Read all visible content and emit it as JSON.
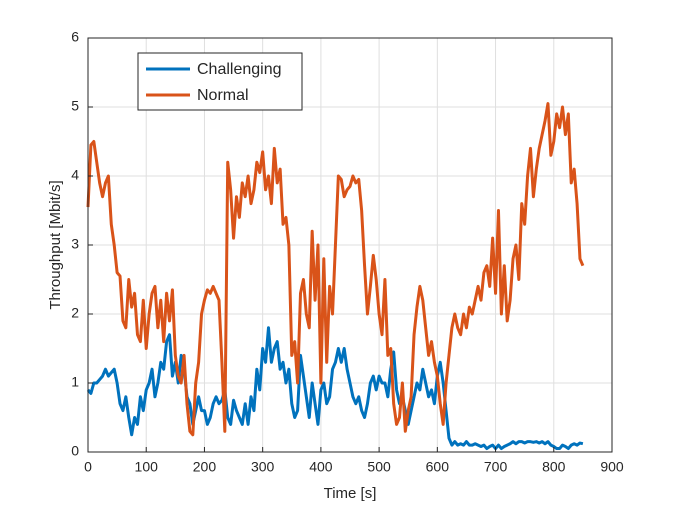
{
  "chart_data": {
    "type": "line",
    "xlabel": "Time [s]",
    "ylabel": "Throughput [Mbit/s]",
    "xlim": [
      0,
      900
    ],
    "ylim": [
      0,
      6
    ],
    "xticks": [
      0,
      100,
      200,
      300,
      400,
      500,
      600,
      700,
      800,
      900
    ],
    "yticks": [
      0,
      1,
      2,
      3,
      4,
      5,
      6
    ],
    "grid": true,
    "legend": "upper left",
    "x": [
      0,
      5,
      10,
      15,
      20,
      25,
      30,
      35,
      40,
      45,
      50,
      55,
      60,
      65,
      70,
      75,
      80,
      85,
      90,
      95,
      100,
      105,
      110,
      115,
      120,
      125,
      130,
      135,
      140,
      145,
      150,
      155,
      160,
      165,
      170,
      175,
      180,
      185,
      190,
      195,
      200,
      205,
      210,
      215,
      220,
      225,
      230,
      235,
      240,
      245,
      250,
      255,
      260,
      265,
      270,
      275,
      280,
      285,
      290,
      295,
      300,
      305,
      310,
      315,
      320,
      325,
      330,
      335,
      340,
      345,
      350,
      355,
      360,
      365,
      370,
      375,
      380,
      385,
      390,
      395,
      400,
      405,
      410,
      415,
      420,
      425,
      430,
      435,
      440,
      445,
      450,
      455,
      460,
      465,
      470,
      475,
      480,
      485,
      490,
      495,
      500,
      505,
      510,
      515,
      520,
      525,
      530,
      535,
      540,
      545,
      550,
      555,
      560,
      565,
      570,
      575,
      580,
      585,
      590,
      595,
      600,
      605,
      610,
      615,
      620,
      625,
      630,
      635,
      640,
      645,
      650,
      655,
      660,
      665,
      670,
      675,
      680,
      685,
      690,
      695,
      700,
      705,
      710,
      715,
      720,
      725,
      730,
      735,
      740,
      745,
      750,
      755,
      760,
      765,
      770,
      775,
      780,
      785,
      790,
      795,
      800,
      805,
      810,
      815,
      820,
      825,
      830,
      835,
      840,
      845,
      850
    ],
    "series": [
      {
        "name": "Challenging",
        "color": "#0072bd",
        "values": [
          0.9,
          0.85,
          1.0,
          1.0,
          1.05,
          1.1,
          1.2,
          1.1,
          1.15,
          1.2,
          1.0,
          0.7,
          0.6,
          0.8,
          0.5,
          0.25,
          0.5,
          0.4,
          0.8,
          0.6,
          0.9,
          1.0,
          1.2,
          0.8,
          1.0,
          1.3,
          1.2,
          1.6,
          1.7,
          1.1,
          1.3,
          1.0,
          1.4,
          1.2,
          0.8,
          0.7,
          0.4,
          0.6,
          0.8,
          0.6,
          0.6,
          0.4,
          0.5,
          0.7,
          0.8,
          0.7,
          0.75,
          0.9,
          0.5,
          0.4,
          0.75,
          0.6,
          0.5,
          0.4,
          0.7,
          0.4,
          0.8,
          0.6,
          1.2,
          0.9,
          1.5,
          1.3,
          1.8,
          1.3,
          1.5,
          1.6,
          1.2,
          1.3,
          1.0,
          1.2,
          0.7,
          0.5,
          0.6,
          1.4,
          1.1,
          0.8,
          0.5,
          1.0,
          0.7,
          0.4,
          0.9,
          1.0,
          0.7,
          0.8,
          1.2,
          1.3,
          1.5,
          1.3,
          1.5,
          1.2,
          1.0,
          0.8,
          0.7,
          0.8,
          0.6,
          0.5,
          0.7,
          1.0,
          1.1,
          0.9,
          1.1,
          1.0,
          1.0,
          0.8,
          1.2,
          1.45,
          0.9,
          0.7,
          0.8,
          0.6,
          0.4,
          0.6,
          0.8,
          1.0,
          0.9,
          1.2,
          1.0,
          0.8,
          0.9,
          0.7,
          1.1,
          1.3,
          1.0,
          0.6,
          0.2,
          0.1,
          0.15,
          0.1,
          0.12,
          0.1,
          0.15,
          0.1,
          0.1,
          0.12,
          0.1,
          0.08,
          0.1,
          0.05,
          0.08,
          0.1,
          0.05,
          0.1,
          0.05,
          0.08,
          0.1,
          0.12,
          0.15,
          0.12,
          0.15,
          0.15,
          0.13,
          0.15,
          0.15,
          0.14,
          0.15,
          0.13,
          0.15,
          0.12,
          0.15,
          0.1,
          0.08,
          0.05,
          0.05,
          0.1,
          0.08,
          0.05,
          0.1,
          0.12,
          0.1,
          0.13,
          0.12
        ]
      },
      {
        "name": "Normal",
        "color": "#d95319",
        "values": [
          3.55,
          4.45,
          4.5,
          4.2,
          3.9,
          3.7,
          3.9,
          4.0,
          3.3,
          3.0,
          2.6,
          2.55,
          1.9,
          1.8,
          2.5,
          2.1,
          2.3,
          1.7,
          1.6,
          2.2,
          1.5,
          2.0,
          2.3,
          2.4,
          1.8,
          2.2,
          1.6,
          2.3,
          1.9,
          2.35,
          1.4,
          1.1,
          1.0,
          1.4,
          0.7,
          0.3,
          0.25,
          1.0,
          1.3,
          2.0,
          2.2,
          2.35,
          2.3,
          2.4,
          2.3,
          2.2,
          1.3,
          0.3,
          4.2,
          3.8,
          3.1,
          3.7,
          3.4,
          3.9,
          3.7,
          4.0,
          3.6,
          3.8,
          4.2,
          4.05,
          4.35,
          3.8,
          4.0,
          3.6,
          4.4,
          3.9,
          4.1,
          3.3,
          3.4,
          3.0,
          1.4,
          1.6,
          1.0,
          2.3,
          2.5,
          2.0,
          1.8,
          3.2,
          2.2,
          3.0,
          1.0,
          2.8,
          1.3,
          2.4,
          2.0,
          3.0,
          4.0,
          3.95,
          3.7,
          3.8,
          3.85,
          4.0,
          3.9,
          3.95,
          3.5,
          2.7,
          2.0,
          2.4,
          2.85,
          2.5,
          2.0,
          1.7,
          2.5,
          1.4,
          1.5,
          0.7,
          0.4,
          0.5,
          1.0,
          0.3,
          0.6,
          0.8,
          1.7,
          2.1,
          2.4,
          2.2,
          1.8,
          1.4,
          1.6,
          1.3,
          1.1,
          0.7,
          0.4,
          1.0,
          1.4,
          1.8,
          2.0,
          1.8,
          1.7,
          2.0,
          1.8,
          2.1,
          2.0,
          2.2,
          2.4,
          2.2,
          2.6,
          2.7,
          2.4,
          3.1,
          2.3,
          3.5,
          2.0,
          2.7,
          1.9,
          2.2,
          2.8,
          3.0,
          2.5,
          3.6,
          3.3,
          4.0,
          4.4,
          3.7,
          4.1,
          4.4,
          4.6,
          4.8,
          5.05,
          4.3,
          4.5,
          4.9,
          4.7,
          5.0,
          4.6,
          4.9,
          3.9,
          4.1,
          3.6,
          2.8,
          2.7
        ]
      }
    ]
  }
}
